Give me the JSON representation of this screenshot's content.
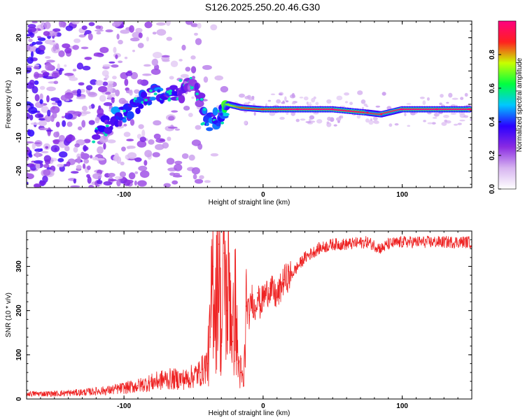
{
  "figure_title": "S126.2025.250.20.46.G30",
  "chart_data": [
    {
      "type": "heatmap",
      "title": "",
      "xlabel": "Height of straight line (km)",
      "ylabel": "Frequency (Hz)",
      "xlim": [
        -170,
        150
      ],
      "ylim": [
        -25,
        25
      ],
      "x_ticks": [
        -100,
        0,
        100
      ],
      "y_ticks": [
        -20,
        -10,
        0,
        10,
        20
      ],
      "colorbar": {
        "label": "Normalized spectral amplitude",
        "range": [
          0.0,
          1.0
        ],
        "ticks": [
          0.0,
          0.2,
          0.4,
          0.6,
          0.8
        ],
        "colors": [
          "#ffffff",
          "#d7b4f0",
          "#8a2be2",
          "#2a00ff",
          "#00c8ff",
          "#00ff40",
          "#c8ff00",
          "#ff2020",
          "#ff0080"
        ]
      },
      "signal_ridge": [
        {
          "x": -120,
          "y": -8,
          "amp": 0.35
        },
        {
          "x": -105,
          "y": -4,
          "amp": 0.4
        },
        {
          "x": -90,
          "y": 0,
          "amp": 0.35
        },
        {
          "x": -75,
          "y": 4,
          "amp": 0.4
        },
        {
          "x": -60,
          "y": 3,
          "amp": 0.3
        },
        {
          "x": -50,
          "y": 8,
          "amp": 0.2
        },
        {
          "x": -40,
          "y": -6,
          "amp": 0.45
        },
        {
          "x": -30,
          "y": -3,
          "amp": 0.4
        },
        {
          "x": -25,
          "y": 0,
          "amp": 0.7
        },
        {
          "x": -15,
          "y": -1,
          "amp": 0.85
        },
        {
          "x": 0,
          "y": -1.5,
          "amp": 0.9
        },
        {
          "x": 25,
          "y": -1.5,
          "amp": 1.0
        },
        {
          "x": 50,
          "y": -1.5,
          "amp": 1.0
        },
        {
          "x": 75,
          "y": -2.5,
          "amp": 0.95
        },
        {
          "x": 85,
          "y": -3,
          "amp": 0.95
        },
        {
          "x": 100,
          "y": -1.5,
          "amp": 1.0
        },
        {
          "x": 125,
          "y": -1.5,
          "amp": 1.0
        },
        {
          "x": 150,
          "y": -1.5,
          "amp": 1.0
        }
      ]
    },
    {
      "type": "line",
      "title": "",
      "xlabel": "Height of straight line (km)",
      "ylabel": "SNR (10 * v/v)",
      "xlim": [
        -170,
        150
      ],
      "ylim": [
        0,
        380
      ],
      "x_ticks": [
        -100,
        0,
        100
      ],
      "y_ticks": [
        0,
        100,
        200,
        300
      ],
      "series": [
        {
          "name": "SNR",
          "color": "#ee2222",
          "x": [
            -170,
            -150,
            -130,
            -110,
            -90,
            -70,
            -55,
            -45,
            -40,
            -38,
            -36,
            -34,
            -32,
            -30,
            -28,
            -26,
            -24,
            -22,
            -20,
            -18,
            -16,
            -14,
            -12,
            -10,
            -8,
            -6,
            -4,
            -2,
            0,
            5,
            10,
            15,
            20,
            25,
            30,
            40,
            50,
            60,
            75,
            85,
            90,
            100,
            120,
            150
          ],
          "values": [
            12,
            12,
            15,
            20,
            30,
            45,
            45,
            60,
            80,
            140,
            300,
            200,
            350,
            120,
            330,
            200,
            280,
            130,
            220,
            80,
            60,
            30,
            210,
            190,
            230,
            200,
            240,
            210,
            230,
            250,
            230,
            270,
            280,
            300,
            320,
            340,
            350,
            350,
            355,
            340,
            350,
            355,
            355,
            355
          ]
        }
      ]
    }
  ]
}
